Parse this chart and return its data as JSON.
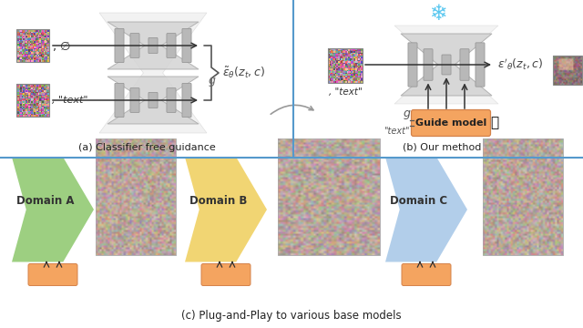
{
  "fig_width": 6.4,
  "fig_height": 3.6,
  "dpi": 100,
  "bg_color": "#ffffff",
  "panel_divider_color": "#5599cc",
  "panel_divider_lw": 1.5,
  "label_a": "(a) Classifier free guidance",
  "label_b": "(b) Our method",
  "label_c": "(c) Plug-and-Play to various base models",
  "domain_labels": [
    "Domain A",
    "Domain B",
    "Domain C"
  ],
  "domain_colors": [
    "#90c970",
    "#f0d060",
    "#a8c8e8"
  ],
  "guide_color": "#f4a460",
  "guide_edge": "#d4824a",
  "unet_bg_color": "#e0e0e0",
  "unet_color": "#d0d0d0",
  "bar_color": "#b8b8b8"
}
